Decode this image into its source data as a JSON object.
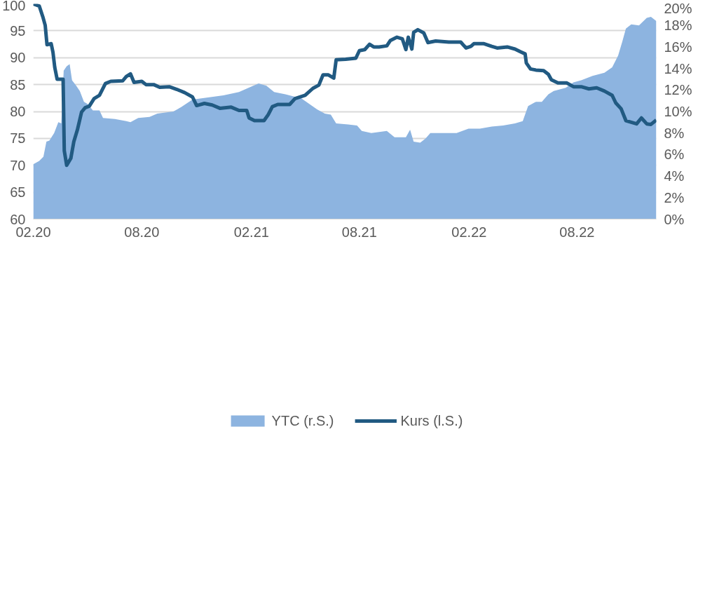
{
  "chart_data": {
    "type": "line",
    "xlim": [
      "2020-02-01",
      "2022-12-12"
    ],
    "xticks": [
      {
        "value": "2020-02-01",
        "label": "02.20"
      },
      {
        "value": "2020-08-01",
        "label": "08.20"
      },
      {
        "value": "2021-02-01",
        "label": "02.21"
      },
      {
        "value": "2021-08-01",
        "label": "08.21"
      },
      {
        "value": "2022-02-01",
        "label": "02.22"
      },
      {
        "value": "2022-08-01",
        "label": "08.22"
      }
    ],
    "ylim": [
      60,
      100
    ],
    "yticks": [
      60,
      65,
      70,
      75,
      80,
      85,
      90,
      95,
      100
    ],
    "y2lim": [
      0,
      20
    ],
    "y2ticks": [
      {
        "value": 0,
        "label": "0%"
      },
      {
        "value": 2,
        "label": "2%"
      },
      {
        "value": 4,
        "label": "4%"
      },
      {
        "value": 6,
        "label": "6%"
      },
      {
        "value": 8,
        "label": "8%"
      },
      {
        "value": 10,
        "label": "10%"
      },
      {
        "value": 12,
        "label": "12%"
      },
      {
        "value": 14,
        "label": "14%"
      },
      {
        "value": 16,
        "label": "16%"
      },
      {
        "value": 18,
        "label": "18%"
      },
      {
        "value": 20,
        "label": "20%"
      }
    ],
    "grid": "y",
    "legend": "bottom",
    "series": [
      {
        "name": "YTC (r.S.)",
        "type": "area",
        "axis": "y2",
        "color": "#8db4e0",
        "x": [
          "2020-02-01",
          "2020-02-11",
          "2020-02-18",
          "2020-02-23",
          "2020-02-28",
          "2020-03-07",
          "2020-03-14",
          "2020-03-19",
          "2020-03-23",
          "2020-03-28",
          "2020-04-02",
          "2020-04-06",
          "2020-04-13",
          "2020-04-19",
          "2020-04-26",
          "2020-05-02",
          "2020-05-11",
          "2020-05-22",
          "2020-05-28",
          "2020-06-17",
          "2020-07-06",
          "2020-07-13",
          "2020-07-26",
          "2020-08-14",
          "2020-08-27",
          "2020-09-23",
          "2020-10-06",
          "2020-10-25",
          "2020-11-20",
          "2020-12-16",
          "2021-01-11",
          "2021-01-31",
          "2021-02-13",
          "2021-02-26",
          "2021-03-11",
          "2021-03-30",
          "2021-04-26",
          "2021-05-09",
          "2021-05-22",
          "2021-06-04",
          "2021-06-14",
          "2021-06-23",
          "2021-07-13",
          "2021-07-28",
          "2021-08-05",
          "2021-08-21",
          "2021-09-16",
          "2021-09-29",
          "2021-10-18",
          "2021-10-25",
          "2021-10-31",
          "2021-11-11",
          "2021-11-20",
          "2021-11-28",
          "2021-12-16",
          "2022-01-11",
          "2022-01-31",
          "2022-02-19",
          "2022-03-11",
          "2022-03-30",
          "2022-04-19",
          "2022-05-02",
          "2022-05-11",
          "2022-05-24",
          "2022-06-03",
          "2022-06-14",
          "2022-06-23",
          "2022-07-13",
          "2022-07-26",
          "2022-08-08",
          "2022-08-27",
          "2022-09-16",
          "2022-09-29",
          "2022-10-09",
          "2022-10-16",
          "2022-10-22",
          "2022-10-31",
          "2022-11-13",
          "2022-11-26",
          "2022-12-03",
          "2022-12-12"
        ],
        "values": [
          5.1,
          5.4,
          5.8,
          7.2,
          7.3,
          8.0,
          9.0,
          8.9,
          13.8,
          14.2,
          14.4,
          12.9,
          12.4,
          11.9,
          10.9,
          10.7,
          10.1,
          10.1,
          9.4,
          9.3,
          9.1,
          9.0,
          9.4,
          9.5,
          9.8,
          10.0,
          10.4,
          11.1,
          11.3,
          11.5,
          11.8,
          12.3,
          12.6,
          12.4,
          11.8,
          11.6,
          11.2,
          10.7,
          10.2,
          9.8,
          9.7,
          8.9,
          8.8,
          8.7,
          8.2,
          8.0,
          8.2,
          7.6,
          7.6,
          8.3,
          7.2,
          7.1,
          7.5,
          8.0,
          8.0,
          8.0,
          8.4,
          8.4,
          8.6,
          8.7,
          8.9,
          9.1,
          10.5,
          10.9,
          10.9,
          11.6,
          11.9,
          12.2,
          12.7,
          12.9,
          13.3,
          13.6,
          14.1,
          15.2,
          16.5,
          17.7,
          18.1,
          18.0,
          18.7,
          18.8,
          18.4
        ]
      },
      {
        "name": "Kurs (l.S.)",
        "color": "#215a82",
        "x": [
          "2020-02-01",
          "2020-02-11",
          "2020-02-17",
          "2020-02-21",
          "2020-02-24",
          "2020-03-02",
          "2020-03-05",
          "2020-03-08",
          "2020-03-12",
          "2020-03-22",
          "2020-03-24",
          "2020-03-28",
          "2020-04-04",
          "2020-04-09",
          "2020-04-15",
          "2020-04-22",
          "2020-04-28",
          "2020-05-05",
          "2020-05-13",
          "2020-05-22",
          "2020-06-01",
          "2020-06-10",
          "2020-06-30",
          "2020-07-06",
          "2020-07-13",
          "2020-07-19",
          "2020-08-01",
          "2020-08-08",
          "2020-08-21",
          "2020-08-31",
          "2020-09-16",
          "2020-09-29",
          "2020-10-12",
          "2020-10-25",
          "2020-11-01",
          "2020-11-14",
          "2020-11-27",
          "2020-12-10",
          "2020-12-29",
          "2021-01-11",
          "2021-01-24",
          "2021-01-28",
          "2021-02-06",
          "2021-02-22",
          "2021-03-01",
          "2021-03-08",
          "2021-03-17",
          "2021-04-06",
          "2021-04-15",
          "2021-05-02",
          "2021-05-15",
          "2021-05-25",
          "2021-06-01",
          "2021-06-10",
          "2021-06-19",
          "2021-06-23",
          "2021-07-09",
          "2021-07-26",
          "2021-08-01",
          "2021-08-10",
          "2021-08-18",
          "2021-08-25",
          "2021-09-03",
          "2021-09-16",
          "2021-09-22",
          "2021-10-03",
          "2021-10-12",
          "2021-10-18",
          "2021-10-22",
          "2021-10-28",
          "2021-10-31",
          "2021-11-07",
          "2021-11-17",
          "2021-11-24",
          "2021-12-07",
          "2021-12-29",
          "2022-01-18",
          "2022-01-22",
          "2022-01-27",
          "2022-02-04",
          "2022-02-09",
          "2022-02-26",
          "2022-03-11",
          "2022-03-20",
          "2022-04-06",
          "2022-04-19",
          "2022-04-28",
          "2022-05-06",
          "2022-05-08",
          "2022-05-15",
          "2022-05-24",
          "2022-06-06",
          "2022-06-14",
          "2022-06-19",
          "2022-06-30",
          "2022-07-15",
          "2022-07-26",
          "2022-08-08",
          "2022-08-21",
          "2022-09-03",
          "2022-09-16",
          "2022-09-29",
          "2022-10-05",
          "2022-10-14",
          "2022-10-22",
          "2022-10-31",
          "2022-11-09",
          "2022-11-17",
          "2022-11-26",
          "2022-12-03",
          "2022-12-12"
        ],
        "values": [
          100,
          99.6,
          97.6,
          96,
          92.4,
          92.6,
          91,
          88.2,
          86,
          86,
          72.7,
          70,
          71.3,
          74.4,
          76.6,
          79.9,
          80.7,
          81,
          82.4,
          83,
          85.2,
          85.6,
          85.7,
          86.5,
          87,
          85.4,
          85.6,
          85,
          85,
          84.5,
          84.6,
          84.1,
          83.5,
          82.7,
          81.1,
          81.5,
          81.2,
          80.6,
          80.8,
          80.2,
          80.2,
          78.8,
          78.3,
          78.3,
          79.4,
          80.9,
          81.3,
          81.3,
          82.4,
          83,
          84.3,
          84.9,
          86.8,
          86.8,
          86.2,
          89.6,
          89.7,
          89.9,
          91.3,
          91.5,
          92.5,
          92,
          92,
          92.2,
          93.2,
          93.8,
          93.5,
          91.5,
          93.8,
          91.6,
          94.7,
          95.2,
          94.6,
          92.8,
          93.1,
          92.9,
          92.9,
          92.4,
          91.8,
          92.1,
          92.6,
          92.6,
          92.1,
          91.8,
          92,
          91.6,
          91.1,
          90.7,
          89,
          87.9,
          87.7,
          87.6,
          86.9,
          85.9,
          85.3,
          85.3,
          84.6,
          84.6,
          84.2,
          84.4,
          83.8,
          83,
          81.6,
          80.5,
          78.3,
          78,
          77.7,
          78.8,
          77.7,
          77.6,
          78.4
        ]
      }
    ]
  }
}
